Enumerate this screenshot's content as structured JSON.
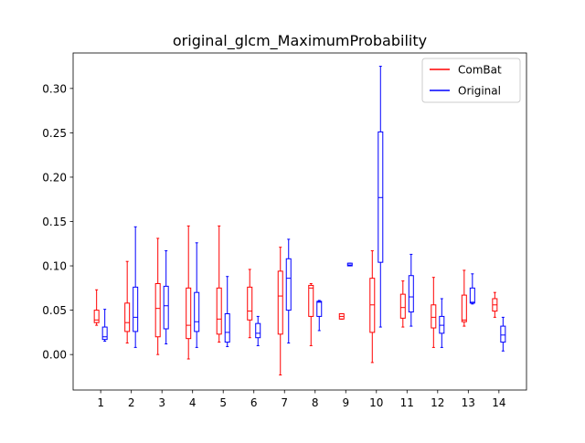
{
  "chart_data": {
    "type": "box",
    "title": "original_glcm_MaximumProbability",
    "xlabel": "",
    "ylabel": "",
    "ylim": [
      -0.04,
      0.34
    ],
    "yticks": [
      "0.00",
      "0.05",
      "0.10",
      "0.15",
      "0.20",
      "0.25",
      "0.30"
    ],
    "ytick_values": [
      0.0,
      0.05,
      0.1,
      0.15,
      0.2,
      0.25,
      0.3
    ],
    "categories": [
      "1",
      "2",
      "3",
      "4",
      "5",
      "6",
      "7",
      "8",
      "9",
      "10",
      "11",
      "12",
      "13",
      "14"
    ],
    "legend_position": "top-right",
    "grid": false,
    "series": [
      {
        "name": "ComBat",
        "color": "#ff0000",
        "boxes": [
          {
            "whislo": 0.033,
            "q1": 0.036,
            "med": 0.039,
            "q3": 0.05,
            "whishi": 0.073
          },
          {
            "whislo": 0.013,
            "q1": 0.026,
            "med": 0.036,
            "q3": 0.058,
            "whishi": 0.105
          },
          {
            "whislo": 0.0,
            "q1": 0.02,
            "med": 0.052,
            "q3": 0.08,
            "whishi": 0.131
          },
          {
            "whislo": -0.005,
            "q1": 0.018,
            "med": 0.033,
            "q3": 0.075,
            "whishi": 0.145
          },
          {
            "whislo": 0.014,
            "q1": 0.023,
            "med": 0.04,
            "q3": 0.075,
            "whishi": 0.145
          },
          {
            "whislo": 0.019,
            "q1": 0.039,
            "med": 0.049,
            "q3": 0.076,
            "whishi": 0.096
          },
          {
            "whislo": -0.023,
            "q1": 0.023,
            "med": 0.066,
            "q3": 0.094,
            "whishi": 0.121
          },
          {
            "whislo": 0.01,
            "q1": 0.043,
            "med": 0.075,
            "q3": 0.078,
            "whishi": 0.08
          },
          {
            "whislo": 0.04,
            "q1": 0.04,
            "med": 0.043,
            "q3": 0.046,
            "whishi": 0.046
          },
          {
            "whislo": -0.009,
            "q1": 0.025,
            "med": 0.056,
            "q3": 0.086,
            "whishi": 0.117
          },
          {
            "whislo": 0.031,
            "q1": 0.041,
            "med": 0.053,
            "q3": 0.068,
            "whishi": 0.083
          },
          {
            "whislo": 0.008,
            "q1": 0.03,
            "med": 0.042,
            "q3": 0.056,
            "whishi": 0.087
          },
          {
            "whislo": 0.032,
            "q1": 0.037,
            "med": 0.039,
            "q3": 0.067,
            "whishi": 0.095
          },
          {
            "whislo": 0.042,
            "q1": 0.049,
            "med": 0.056,
            "q3": 0.063,
            "whishi": 0.07
          }
        ]
      },
      {
        "name": "Original",
        "color": "#0000ff",
        "boxes": [
          {
            "whislo": 0.015,
            "q1": 0.017,
            "med": 0.02,
            "q3": 0.031,
            "whishi": 0.051
          },
          {
            "whislo": 0.008,
            "q1": 0.026,
            "med": 0.042,
            "q3": 0.076,
            "whishi": 0.144
          },
          {
            "whislo": 0.012,
            "q1": 0.029,
            "med": 0.055,
            "q3": 0.077,
            "whishi": 0.117
          },
          {
            "whislo": 0.008,
            "q1": 0.026,
            "med": 0.037,
            "q3": 0.07,
            "whishi": 0.126
          },
          {
            "whislo": 0.009,
            "q1": 0.014,
            "med": 0.025,
            "q3": 0.046,
            "whishi": 0.088
          },
          {
            "whislo": 0.01,
            "q1": 0.019,
            "med": 0.024,
            "q3": 0.035,
            "whishi": 0.043
          },
          {
            "whislo": 0.013,
            "q1": 0.05,
            "med": 0.086,
            "q3": 0.108,
            "whishi": 0.13
          },
          {
            "whislo": 0.027,
            "q1": 0.043,
            "med": 0.059,
            "q3": 0.06,
            "whishi": 0.061
          },
          {
            "whislo": 0.1,
            "q1": 0.1,
            "med": 0.101,
            "q3": 0.103,
            "whishi": 0.103
          },
          {
            "whislo": 0.031,
            "q1": 0.104,
            "med": 0.177,
            "q3": 0.251,
            "whishi": 0.325
          },
          {
            "whislo": 0.032,
            "q1": 0.048,
            "med": 0.065,
            "q3": 0.089,
            "whishi": 0.113
          },
          {
            "whislo": 0.008,
            "q1": 0.024,
            "med": 0.033,
            "q3": 0.043,
            "whishi": 0.063
          },
          {
            "whislo": 0.057,
            "q1": 0.058,
            "med": 0.059,
            "q3": 0.075,
            "whishi": 0.091
          },
          {
            "whislo": 0.004,
            "q1": 0.014,
            "med": 0.022,
            "q3": 0.032,
            "whishi": 0.042
          }
        ]
      }
    ]
  }
}
